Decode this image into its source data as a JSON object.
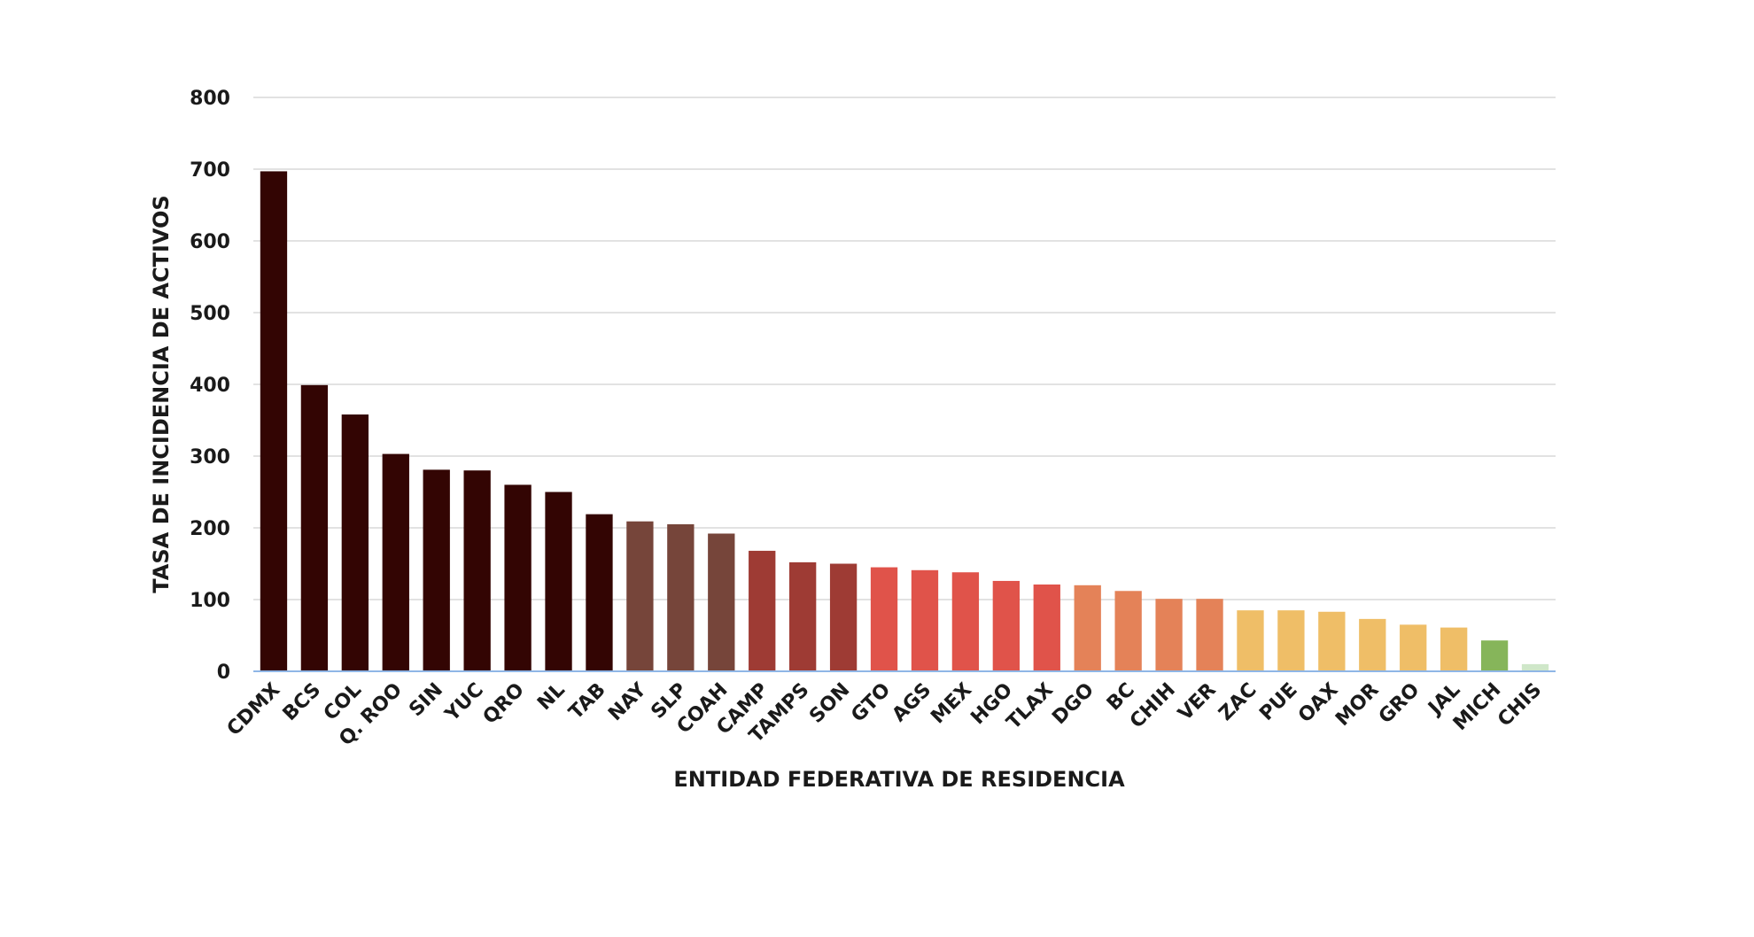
{
  "chart_data": {
    "type": "bar",
    "title": "",
    "xlabel": "ENTIDAD FEDERATIVA DE RESIDENCIA",
    "ylabel": "TASA DE INCIDENCIA DE ACTIVOS",
    "ylim": [
      0,
      800
    ],
    "yticks": [
      0,
      100,
      200,
      300,
      400,
      500,
      600,
      700,
      800
    ],
    "grid": true,
    "legend": "none",
    "categories": [
      "CDMX",
      "BCS",
      "COL",
      "Q. ROO",
      "SIN",
      "YUC",
      "QRO",
      "NL",
      "TAB",
      "NAY",
      "SLP",
      "COAH",
      "CAMP",
      "TAMPS",
      "SON",
      "GTO",
      "AGS",
      "MEX",
      "HGO",
      "TLAX",
      "DGO",
      "BC",
      "CHIH",
      "VER",
      "ZAC",
      "PUE",
      "OAX",
      "MOR",
      "GRO",
      "JAL",
      "MICH",
      "CHIS"
    ],
    "values": [
      697,
      399,
      358,
      303,
      281,
      280,
      260,
      250,
      219,
      209,
      205,
      192,
      168,
      152,
      150,
      145,
      141,
      138,
      126,
      121,
      120,
      112,
      101,
      101,
      85,
      85,
      83,
      73,
      65,
      61,
      43,
      10
    ],
    "bar_colors": [
      "#330503",
      "#330503",
      "#330503",
      "#330503",
      "#330503",
      "#330503",
      "#330503",
      "#330503",
      "#330503",
      "#76453a",
      "#76453a",
      "#76453a",
      "#9e3b34",
      "#9e3b34",
      "#9e3b34",
      "#e0534a",
      "#e0534a",
      "#e0534a",
      "#e0534a",
      "#e0534a",
      "#e48258",
      "#e48258",
      "#e48258",
      "#e48258",
      "#efbe67",
      "#efbe67",
      "#efbe67",
      "#efbe67",
      "#efbe67",
      "#efbe67",
      "#86b55a",
      "#cfe7c9"
    ]
  }
}
